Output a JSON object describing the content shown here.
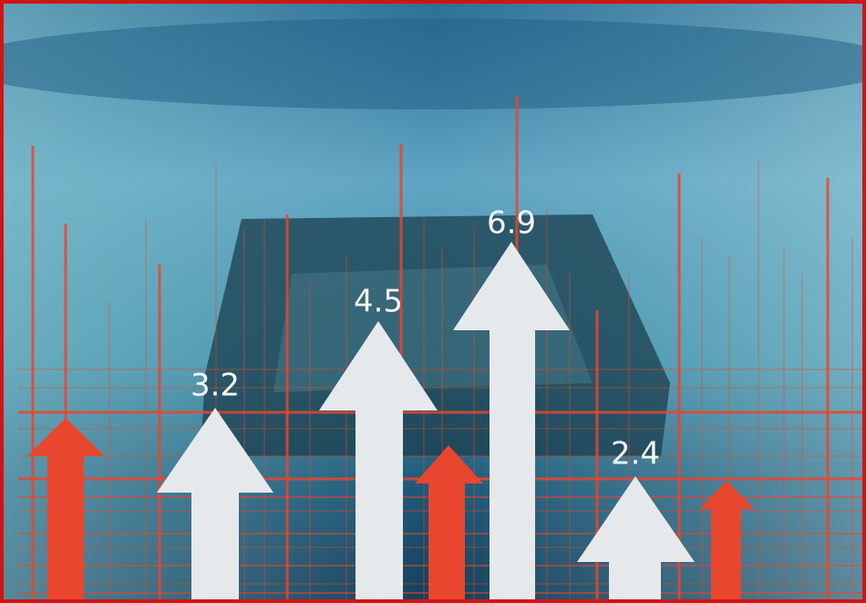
{
  "arrows": [
    {
      "label": "3.2"
    },
    {
      "label": "4.5"
    },
    {
      "label": "6.9"
    },
    {
      "label": "2.4"
    }
  ]
}
